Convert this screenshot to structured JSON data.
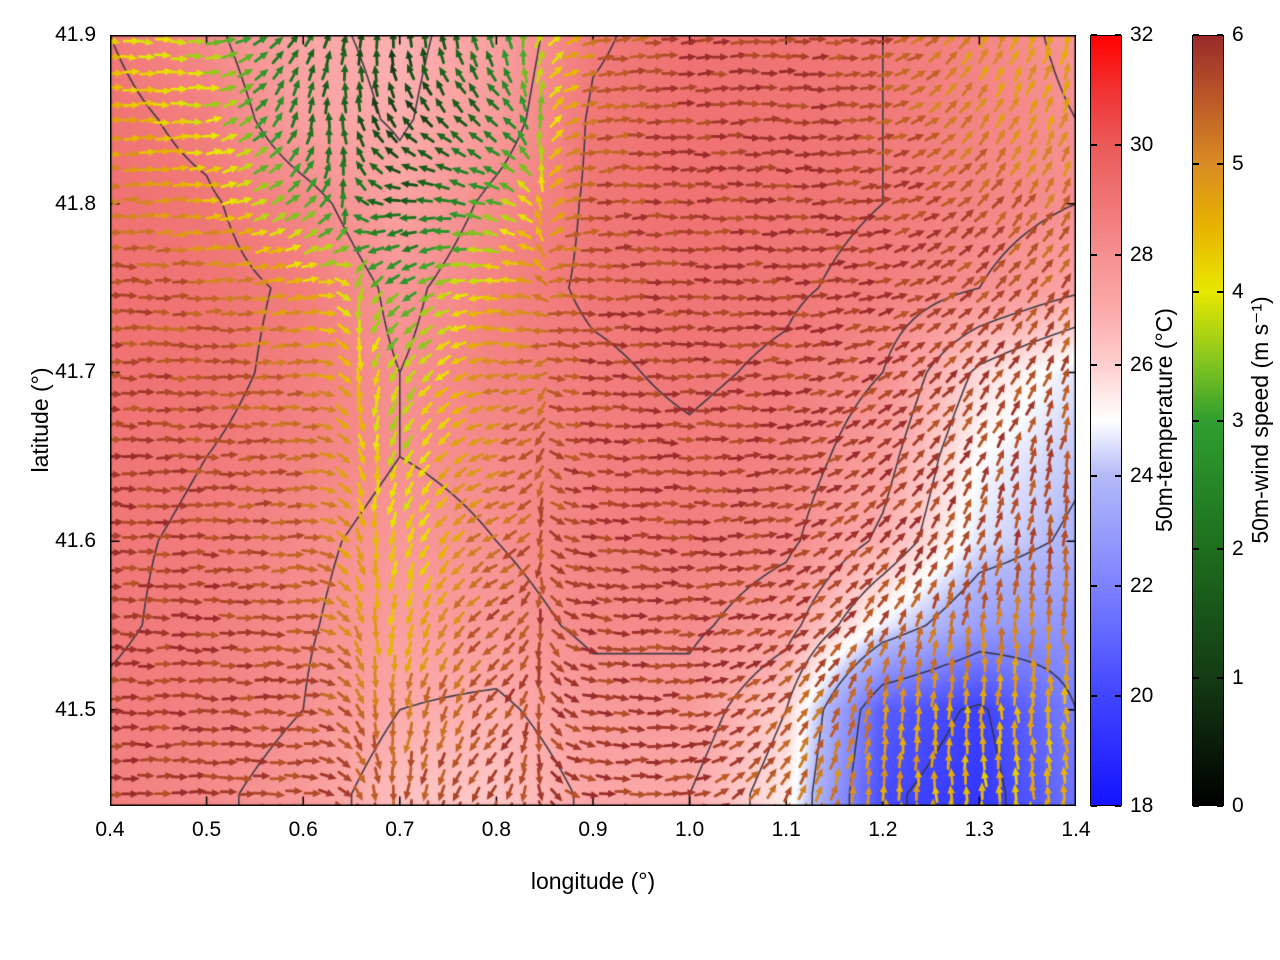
{
  "chart_data": {
    "type": "heatmap",
    "subtype": "temperature field with wind-speed-colored vector arrows and contour lines",
    "title": "",
    "xlabel": "longitude (°)",
    "ylabel": "latitude (°)",
    "xlim": [
      0.4,
      1.4
    ],
    "ylim": [
      41.443,
      41.9
    ],
    "xtick_labels": [
      "0.4",
      "0.5",
      "0.6",
      "0.7",
      "0.8",
      "0.9",
      "1.0",
      "1.1",
      "1.2",
      "1.3",
      "1.4"
    ],
    "xtick_values": [
      0.4,
      0.5,
      0.6,
      0.7,
      0.8,
      0.9,
      1.0,
      1.1,
      1.2,
      1.3,
      1.4
    ],
    "ytick_labels": [
      "41.5",
      "41.6",
      "41.7",
      "41.8",
      "41.9"
    ],
    "ytick_values": [
      41.5,
      41.6,
      41.7,
      41.8,
      41.9
    ],
    "grid": {
      "lats": [
        41.9,
        41.85,
        41.8,
        41.75,
        41.7,
        41.65,
        41.6,
        41.55,
        41.5,
        41.45
      ],
      "lons": [
        0.4,
        0.5,
        0.6,
        0.7,
        0.8,
        0.9,
        1.0,
        1.1,
        1.2,
        1.3,
        1.4
      ]
    },
    "temperature": {
      "colorbar_label": "50m-temperature (°C)",
      "range": [
        18,
        32
      ],
      "tick_labels": [
        "18",
        "20",
        "22",
        "24",
        "26",
        "28",
        "30",
        "32"
      ],
      "tick_values": [
        18,
        20,
        22,
        24,
        26,
        28,
        30,
        32
      ],
      "colormap": [
        [
          18,
          "#1414ff"
        ],
        [
          20,
          "#4146ff"
        ],
        [
          22,
          "#7d82ff"
        ],
        [
          24,
          "#b4baf8"
        ],
        [
          25,
          "#ffffff"
        ],
        [
          26,
          "#ffcfcf"
        ],
        [
          27,
          "#fcaaaa"
        ],
        [
          28,
          "#f69090"
        ],
        [
          29,
          "#f07474"
        ],
        [
          30,
          "#eb5a5a"
        ],
        [
          31,
          "#f23232"
        ],
        [
          32,
          "#ff0000"
        ]
      ],
      "values": [
        [
          28.8,
          28.2,
          27.2,
          26.8,
          27.4,
          28.7,
          29.1,
          29.0,
          28.8,
          28.4,
          27.8
        ],
        [
          29.0,
          28.6,
          27.4,
          26.9,
          27.6,
          28.9,
          29.1,
          29.0,
          28.8,
          28.4,
          28.0
        ],
        [
          29.1,
          28.9,
          28.3,
          27.3,
          28.2,
          28.9,
          29.1,
          29.0,
          28.8,
          28.4,
          28.0
        ],
        [
          29.1,
          29.0,
          28.7,
          27.8,
          28.5,
          28.9,
          29.0,
          28.9,
          28.6,
          28.0,
          27.2
        ],
        [
          29.1,
          29.0,
          28.6,
          28.0,
          28.5,
          28.7,
          28.9,
          28.7,
          28.0,
          25.8,
          24.6
        ],
        [
          29.0,
          28.8,
          28.5,
          28.0,
          28.2,
          28.6,
          28.7,
          28.5,
          27.4,
          25.0,
          24.2
        ],
        [
          28.9,
          28.7,
          28.2,
          27.7,
          28.0,
          28.5,
          28.6,
          28.2,
          26.8,
          24.6,
          23.8
        ],
        [
          28.9,
          28.6,
          28.1,
          27.5,
          27.6,
          28.2,
          28.2,
          27.4,
          24.8,
          23.0,
          22.6
        ],
        [
          28.7,
          28.5,
          28.0,
          27.0,
          26.8,
          27.6,
          27.6,
          26.0,
          20.8,
          19.8,
          22.0
        ],
        [
          28.6,
          28.2,
          27.6,
          26.4,
          26.2,
          27.2,
          27.0,
          25.4,
          20.2,
          19.4,
          21.6
        ]
      ]
    },
    "wind": {
      "colorbar_label": "50m-wind speed (m s⁻¹)",
      "range": [
        0,
        6
      ],
      "tick_labels": [
        "0",
        "1",
        "2",
        "3",
        "4",
        "5",
        "6"
      ],
      "tick_values": [
        0,
        1,
        2,
        3,
        4,
        5,
        6
      ],
      "colormap": [
        [
          0,
          "#000000"
        ],
        [
          1,
          "#143c14"
        ],
        [
          2,
          "#1e6e1e"
        ],
        [
          3,
          "#2f9e2f"
        ],
        [
          3.5,
          "#8cc81e"
        ],
        [
          4,
          "#e8e800"
        ],
        [
          4.5,
          "#e8b400"
        ],
        [
          5,
          "#d98c23"
        ],
        [
          5.5,
          "#bb5828"
        ],
        [
          6,
          "#992b2b"
        ]
      ],
      "speed": [
        [
          4.2,
          3.6,
          2.0,
          1.2,
          2.4,
          5.2,
          5.8,
          5.8,
          5.6,
          4.8,
          4.6
        ],
        [
          4.6,
          4.0,
          2.2,
          1.0,
          2.0,
          5.4,
          5.8,
          5.8,
          5.6,
          5.0,
          4.8
        ],
        [
          5.2,
          4.6,
          3.2,
          1.6,
          3.4,
          5.6,
          5.8,
          5.8,
          5.8,
          5.6,
          5.2
        ],
        [
          5.6,
          5.4,
          4.6,
          3.0,
          4.4,
          5.7,
          5.8,
          5.8,
          5.8,
          5.7,
          5.5
        ],
        [
          5.7,
          5.6,
          5.2,
          3.6,
          5.0,
          5.8,
          5.8,
          5.8,
          5.8,
          5.7,
          5.6
        ],
        [
          5.8,
          5.7,
          5.4,
          3.8,
          5.2,
          5.8,
          5.8,
          5.8,
          5.8,
          5.7,
          5.6
        ],
        [
          5.8,
          5.7,
          5.5,
          4.0,
          5.4,
          5.8,
          5.8,
          5.8,
          5.8,
          5.7,
          5.6
        ],
        [
          5.8,
          5.8,
          5.6,
          4.4,
          5.6,
          5.8,
          5.8,
          5.8,
          5.6,
          5.2,
          5.0
        ],
        [
          5.8,
          5.8,
          5.7,
          5.2,
          5.7,
          5.8,
          5.8,
          5.6,
          5.0,
          4.6,
          4.6
        ],
        [
          5.8,
          5.8,
          5.7,
          5.5,
          5.7,
          5.8,
          5.8,
          5.4,
          4.8,
          4.4,
          4.6
        ]
      ],
      "direction_deg": [
        [
          355,
          0,
          60,
          90,
          110,
          10,
          5,
          0,
          10,
          60,
          75
        ],
        [
          0,
          5,
          75,
          130,
          140,
          10,
          5,
          0,
          10,
          55,
          70
        ],
        [
          0,
          5,
          40,
          185,
          160,
          5,
          0,
          0,
          10,
          45,
          60
        ],
        [
          0,
          0,
          10,
          215,
          175,
          0,
          0,
          0,
          15,
          40,
          55
        ],
        [
          0,
          0,
          5,
          235,
          185,
          0,
          0,
          5,
          25,
          50,
          70
        ],
        [
          0,
          0,
          5,
          245,
          195,
          355,
          0,
          10,
          35,
          60,
          80
        ],
        [
          0,
          0,
          0,
          250,
          205,
          355,
          0,
          15,
          45,
          70,
          85
        ],
        [
          0,
          0,
          0,
          255,
          215,
          350,
          5,
          25,
          60,
          80,
          90
        ],
        [
          0,
          0,
          0,
          260,
          225,
          350,
          5,
          45,
          80,
          90,
          95
        ],
        [
          0,
          0,
          0,
          265,
          235,
          350,
          10,
          60,
          90,
          95,
          100
        ]
      ]
    },
    "contours": {
      "levels": [
        20,
        22,
        24,
        26,
        27,
        28,
        28.8
      ],
      "color": "#34343f"
    }
  }
}
